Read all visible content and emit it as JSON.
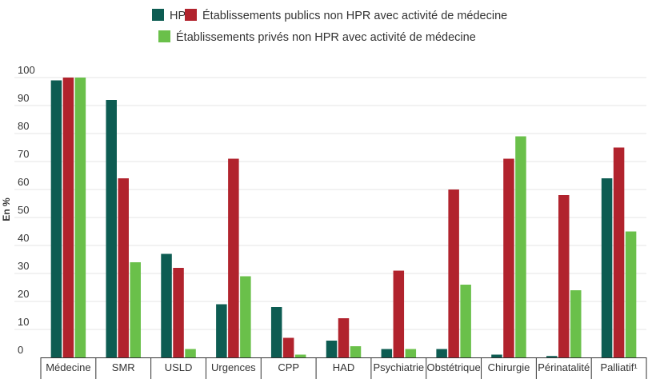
{
  "chart_data": {
    "type": "bar",
    "categories": [
      "Médecine",
      "SMR",
      "USLD",
      "Urgences",
      "CPP",
      "HAD",
      "Psychiatrie",
      "Obstétrique",
      "Chirurgie",
      "Périnatalité",
      "Palliatif¹"
    ],
    "series": [
      {
        "name": "HPR",
        "color": "#0d5c52",
        "values": [
          99,
          92,
          37,
          19,
          18,
          6,
          3,
          3,
          1,
          0.5,
          64
        ]
      },
      {
        "name": "Établissements publics non HPR avec activité de médecine",
        "color": "#b1232d",
        "values": [
          100,
          64,
          32,
          71,
          7,
          14,
          31,
          60,
          71,
          58,
          75
        ]
      },
      {
        "name": "Établissements privés non HPR avec activité de médecine",
        "color": "#6ac04a",
        "values": [
          100,
          34,
          3,
          29,
          1,
          4,
          3,
          26,
          79,
          24,
          45
        ]
      }
    ],
    "ylabel": "En %",
    "ylim": [
      0,
      100
    ],
    "yticks": [
      0,
      10,
      20,
      30,
      40,
      50,
      60,
      70,
      80,
      90,
      100
    ],
    "grid": true,
    "legend": "top-center"
  }
}
